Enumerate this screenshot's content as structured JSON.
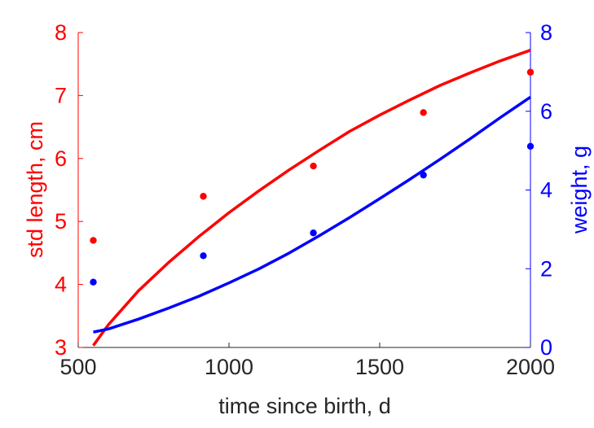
{
  "chart_data": {
    "type": "line",
    "xlabel": "time since birth, d",
    "ylabel_left": "std length, cm",
    "ylabel_right": "weight, g",
    "xlim": [
      500,
      2000
    ],
    "ylim_left": [
      3,
      8
    ],
    "ylim_right": [
      0,
      8
    ],
    "xticks": [
      500,
      1000,
      1500,
      2000
    ],
    "yticks_left": [
      3,
      4,
      5,
      6,
      7,
      8
    ],
    "yticks_right": [
      0,
      2,
      4,
      6,
      8
    ],
    "colors": {
      "left": "#ff0000",
      "right": "#0000ff",
      "axis": "#262626"
    },
    "grid": false,
    "series": [
      {
        "axis": "left",
        "color": "#ff0000",
        "points_x": [
          550,
          915,
          1280,
          1645,
          2000
        ],
        "points_y": [
          4.7,
          5.4,
          5.88,
          6.73,
          7.37
        ],
        "curve_x": [
          550,
          600,
          700,
          800,
          900,
          1000,
          1100,
          1200,
          1300,
          1400,
          1500,
          1600,
          1700,
          1800,
          1900,
          2000
        ],
        "curve_y": [
          3.03,
          3.36,
          3.9,
          4.35,
          4.76,
          5.14,
          5.49,
          5.82,
          6.13,
          6.43,
          6.69,
          6.93,
          7.16,
          7.36,
          7.55,
          7.72
        ]
      },
      {
        "axis": "right",
        "color": "#0000ff",
        "points_x": [
          550,
          915,
          1280,
          1645,
          2000
        ],
        "points_y": [
          1.66,
          2.33,
          2.91,
          4.38,
          5.11
        ],
        "curve_x": [
          550,
          600,
          700,
          800,
          900,
          1000,
          1100,
          1200,
          1300,
          1400,
          1500,
          1600,
          1700,
          1800,
          1900,
          2000
        ],
        "curve_y": [
          0.39,
          0.47,
          0.72,
          1.0,
          1.3,
          1.64,
          2.0,
          2.4,
          2.84,
          3.3,
          3.78,
          4.27,
          4.78,
          5.3,
          5.84,
          6.36
        ]
      }
    ]
  }
}
